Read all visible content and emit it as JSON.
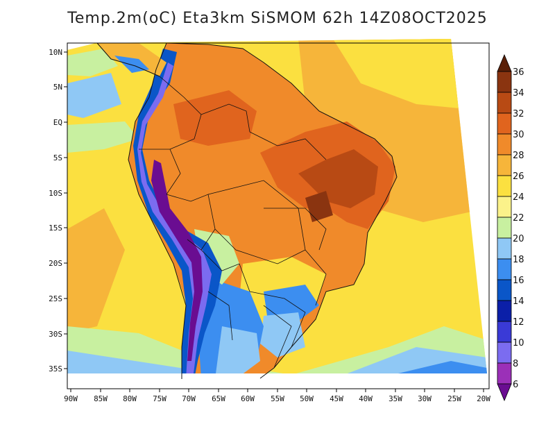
{
  "title": "Temp.2m(oC) Eta3km SiSMOM 62h 14Z08OCT2025",
  "lat_labels": [
    "10N",
    "5N",
    "EQ",
    "5S",
    "10S",
    "15S",
    "20S",
    "25S",
    "30S",
    "35S"
  ],
  "lon_labels": [
    "90W",
    "85W",
    "80W",
    "75W",
    "70W",
    "65W",
    "60W",
    "55W",
    "50W",
    "45W",
    "40W",
    "35W",
    "30W",
    "25W",
    "20W"
  ],
  "colorbar": {
    "levels": [
      "6",
      "8",
      "10",
      "12",
      "14",
      "16",
      "18",
      "20",
      "22",
      "24",
      "26",
      "28",
      "30",
      "32",
      "34",
      "36"
    ],
    "colors": [
      "#6a0d91",
      "#9b30b8",
      "#7b6cf0",
      "#3a3ad6",
      "#0b1fa8",
      "#0a56c8",
      "#3c8ef0",
      "#8fc8f5",
      "#c8f0a0",
      "#fbf28a",
      "#fbe040",
      "#f6b53a",
      "#f08a2a",
      "#e0641e",
      "#b84a14",
      "#8a3410",
      "#5a2008"
    ]
  }
}
